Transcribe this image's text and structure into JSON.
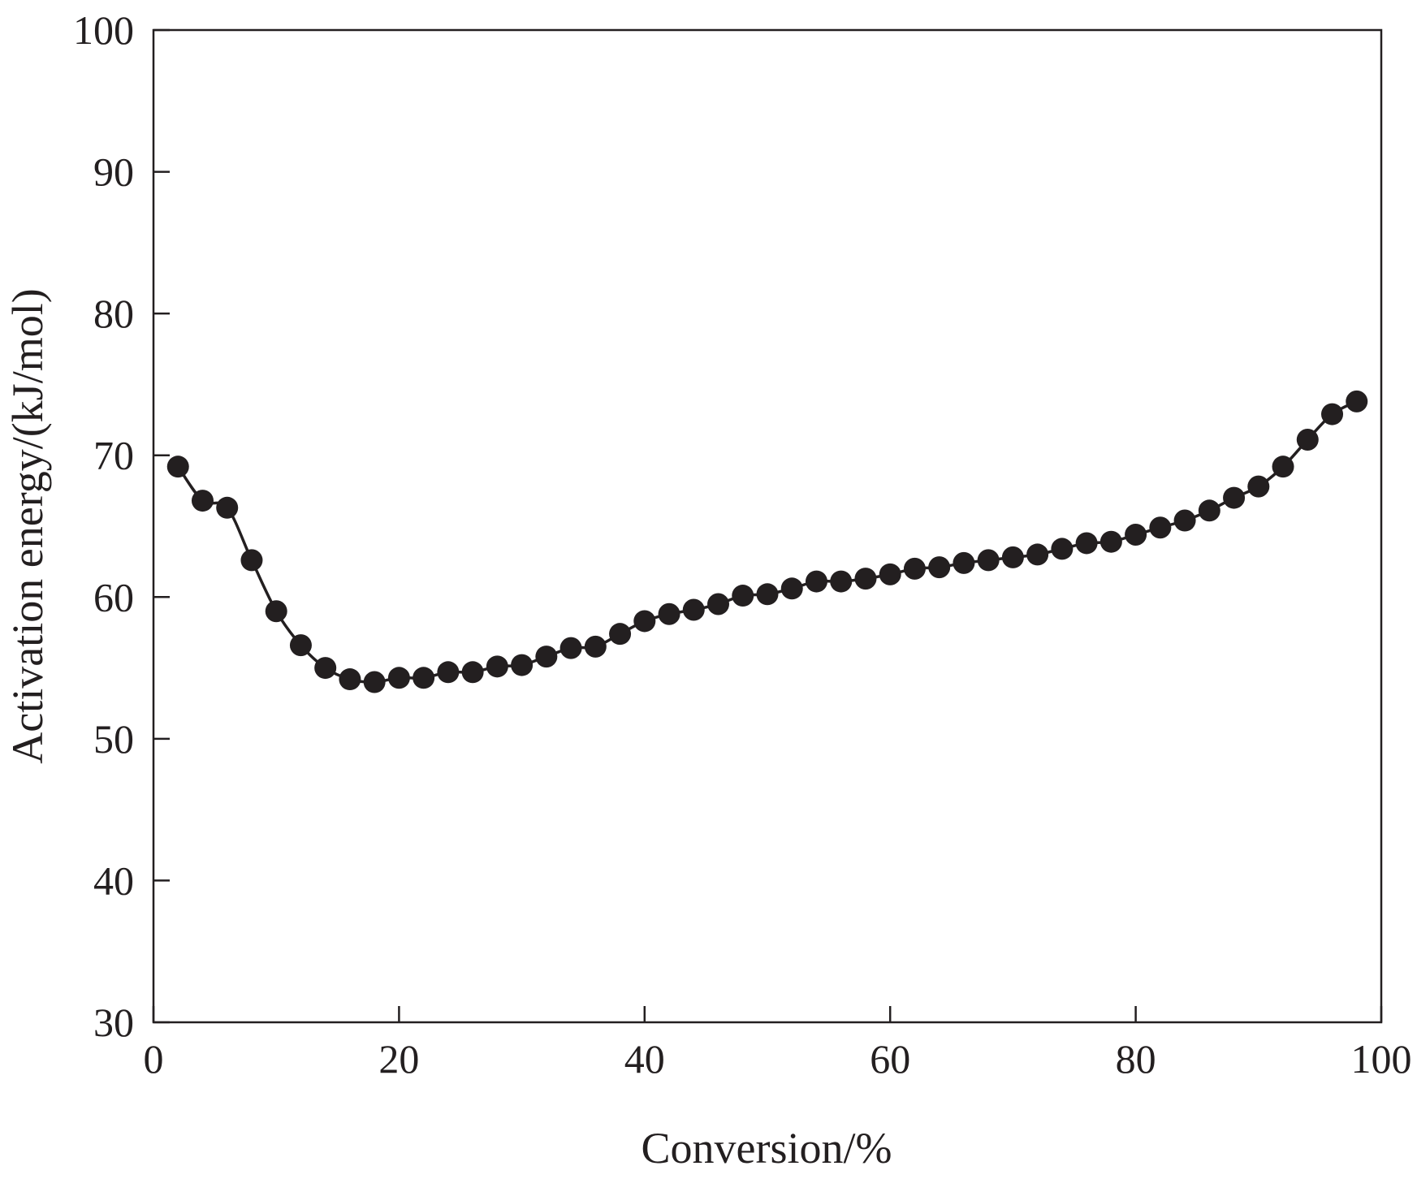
{
  "chart_data": {
    "type": "line",
    "title": "",
    "xlabel": "Conversion/%",
    "ylabel": "Activation energy/(kJ/mol)",
    "xlim": [
      0,
      100
    ],
    "ylim": [
      30,
      100
    ],
    "xticks": [
      0,
      20,
      40,
      60,
      80,
      100
    ],
    "yticks": [
      30,
      40,
      50,
      60,
      70,
      80,
      90,
      100
    ],
    "grid": false,
    "legend": "none",
    "marker": "filled-circle",
    "color": "#231f20",
    "series": [
      {
        "x": [
          2,
          4,
          6,
          8,
          10,
          12,
          14,
          16,
          18,
          20,
          22,
          24,
          26,
          28,
          30,
          32,
          34,
          36,
          38,
          40,
          42,
          44,
          46,
          48,
          50,
          52,
          54,
          56,
          58,
          60,
          62,
          64,
          66,
          68,
          70,
          72,
          74,
          76,
          78,
          80,
          82,
          84,
          86,
          88,
          90,
          92,
          94,
          96,
          98
        ],
        "y": [
          69.2,
          66.8,
          66.3,
          62.6,
          59.0,
          56.6,
          55.0,
          54.2,
          54.0,
          54.3,
          54.3,
          54.7,
          54.7,
          55.1,
          55.2,
          55.8,
          56.4,
          56.5,
          57.4,
          58.3,
          58.8,
          59.1,
          59.5,
          60.1,
          60.2,
          60.6,
          61.1,
          61.1,
          61.3,
          61.6,
          62.0,
          62.1,
          62.4,
          62.6,
          62.8,
          63.0,
          63.4,
          63.8,
          63.9,
          64.4,
          64.9,
          65.4,
          66.1,
          67.0,
          67.8,
          69.2,
          71.1,
          72.9,
          73.8
        ]
      }
    ]
  }
}
